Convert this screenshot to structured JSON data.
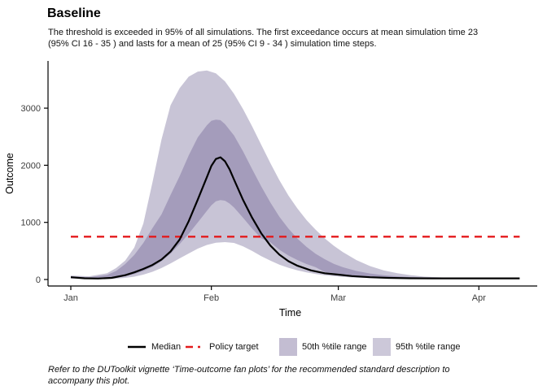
{
  "title": "Baseline",
  "subtitle_line1": "The threshold is exceeded in 95% of all simulations. The first exceedance occurs at mean simulation time 23",
  "subtitle_line2": "(95% CI 16 - 35 ) and lasts for a mean of 25 (95% CI 9 - 34 ) simulation time steps.",
  "footer_line1": "Refer to the DUToolkit vignette ‘Time-outcome fan plots’ for the recommended standard description to",
  "footer_line2": "accompany this plot.",
  "colors": {
    "background": "#ffffff",
    "axis": "#000000",
    "tick_text": "#3d3d3d",
    "median": "#000000",
    "policy_target": "#e41a1c",
    "band_95_fill": "#c8c4d6",
    "band_50_fill": "#a49cbb",
    "legend_key_50": "#c3bdd2",
    "legend_key_95": "#ccc8d9"
  },
  "chart_data": {
    "type": "area",
    "title": "Baseline",
    "xlabel": "Time",
    "ylabel": "Outcome",
    "x_ticks": [
      {
        "label": "Jan",
        "day": 0
      },
      {
        "label": "Feb",
        "day": 31
      },
      {
        "label": "Mar",
        "day": 59
      },
      {
        "label": "Apr",
        "day": 90
      }
    ],
    "y_ticks": [
      0,
      1000,
      2000,
      3000
    ],
    "ylim": [
      0,
      3700
    ],
    "xlim_days": [
      0,
      101
    ],
    "grid": "off",
    "legend_position": "bottom",
    "policy_target": {
      "name": "Policy target",
      "value": 750,
      "style": "dashed",
      "color": "#e41a1c"
    },
    "median": {
      "name": "Median",
      "color": "#000000",
      "points": [
        [
          0,
          40
        ],
        [
          3,
          22
        ],
        [
          6,
          17
        ],
        [
          9,
          28
        ],
        [
          12,
          75
        ],
        [
          14,
          125
        ],
        [
          16,
          185
        ],
        [
          18,
          255
        ],
        [
          20,
          350
        ],
        [
          22,
          490
        ],
        [
          24,
          700
        ],
        [
          26,
          1020
        ],
        [
          28,
          1400
        ],
        [
          30,
          1790
        ],
        [
          31,
          1990
        ],
        [
          32,
          2110
        ],
        [
          33,
          2140
        ],
        [
          34,
          2070
        ],
        [
          35,
          1930
        ],
        [
          36,
          1750
        ],
        [
          38,
          1390
        ],
        [
          40,
          1080
        ],
        [
          42,
          810
        ],
        [
          44,
          595
        ],
        [
          46,
          435
        ],
        [
          48,
          320
        ],
        [
          50,
          240
        ],
        [
          53,
          160
        ],
        [
          56,
          110
        ],
        [
          59,
          85
        ],
        [
          62,
          60
        ],
        [
          66,
          40
        ],
        [
          70,
          28
        ],
        [
          75,
          22
        ],
        [
          80,
          20
        ],
        [
          85,
          20
        ],
        [
          90,
          20
        ],
        [
          95,
          20
        ],
        [
          99,
          20
        ]
      ]
    },
    "bands": [
      {
        "name": "95th %tile range",
        "fill": "#c8c4d6",
        "key_fill": "#ccc8d9",
        "upper": [
          [
            0,
            70
          ],
          [
            4,
            55
          ],
          [
            8,
            110
          ],
          [
            10,
            200
          ],
          [
            12,
            330
          ],
          [
            14,
            560
          ],
          [
            16,
            980
          ],
          [
            18,
            1700
          ],
          [
            20,
            2450
          ],
          [
            22,
            3050
          ],
          [
            24,
            3350
          ],
          [
            26,
            3550
          ],
          [
            28,
            3640
          ],
          [
            30,
            3660
          ],
          [
            32,
            3610
          ],
          [
            34,
            3470
          ],
          [
            36,
            3250
          ],
          [
            38,
            2980
          ],
          [
            40,
            2680
          ],
          [
            42,
            2360
          ],
          [
            44,
            2040
          ],
          [
            46,
            1740
          ],
          [
            48,
            1470
          ],
          [
            50,
            1240
          ],
          [
            52,
            1040
          ],
          [
            54,
            870
          ],
          [
            56,
            720
          ],
          [
            58,
            590
          ],
          [
            60,
            480
          ],
          [
            63,
            340
          ],
          [
            66,
            235
          ],
          [
            69,
            160
          ],
          [
            72,
            110
          ],
          [
            75,
            75
          ],
          [
            78,
            50
          ],
          [
            82,
            35
          ],
          [
            86,
            27
          ],
          [
            90,
            23
          ],
          [
            99,
            22
          ]
        ],
        "lower": [
          [
            0,
            15
          ],
          [
            4,
            8
          ],
          [
            8,
            10
          ],
          [
            10,
            16
          ],
          [
            12,
            28
          ],
          [
            14,
            50
          ],
          [
            16,
            85
          ],
          [
            18,
            135
          ],
          [
            20,
            200
          ],
          [
            22,
            280
          ],
          [
            24,
            370
          ],
          [
            26,
            455
          ],
          [
            28,
            540
          ],
          [
            30,
            605
          ],
          [
            32,
            645
          ],
          [
            34,
            655
          ],
          [
            36,
            640
          ],
          [
            38,
            580
          ],
          [
            40,
            500
          ],
          [
            42,
            410
          ],
          [
            44,
            330
          ],
          [
            46,
            260
          ],
          [
            48,
            205
          ],
          [
            50,
            160
          ],
          [
            52,
            125
          ],
          [
            54,
            97
          ],
          [
            56,
            75
          ],
          [
            58,
            58
          ],
          [
            60,
            45
          ],
          [
            63,
            32
          ],
          [
            66,
            24
          ],
          [
            69,
            19
          ],
          [
            72,
            16
          ],
          [
            76,
            15
          ],
          [
            80,
            15
          ],
          [
            85,
            15
          ],
          [
            90,
            15
          ],
          [
            99,
            15
          ]
        ]
      },
      {
        "name": "50th %tile range",
        "fill": "#a49cbb",
        "key_fill": "#c3bdd2",
        "upper": [
          [
            0,
            55
          ],
          [
            4,
            40
          ],
          [
            8,
            80
          ],
          [
            10,
            150
          ],
          [
            12,
            270
          ],
          [
            14,
            430
          ],
          [
            16,
            640
          ],
          [
            18,
            900
          ],
          [
            20,
            1140
          ],
          [
            22,
            1480
          ],
          [
            24,
            1810
          ],
          [
            26,
            2170
          ],
          [
            28,
            2490
          ],
          [
            30,
            2700
          ],
          [
            31,
            2780
          ],
          [
            32,
            2800
          ],
          [
            33,
            2790
          ],
          [
            34,
            2720
          ],
          [
            36,
            2520
          ],
          [
            38,
            2240
          ],
          [
            40,
            1930
          ],
          [
            42,
            1630
          ],
          [
            44,
            1350
          ],
          [
            46,
            1100
          ],
          [
            48,
            890
          ],
          [
            50,
            715
          ],
          [
            52,
            570
          ],
          [
            54,
            450
          ],
          [
            56,
            355
          ],
          [
            58,
            275
          ],
          [
            60,
            215
          ],
          [
            63,
            150
          ],
          [
            66,
            105
          ],
          [
            69,
            75
          ],
          [
            72,
            55
          ],
          [
            76,
            38
          ],
          [
            80,
            26
          ],
          [
            85,
            22
          ],
          [
            90,
            21
          ],
          [
            99,
            21
          ]
        ],
        "lower": [
          [
            0,
            25
          ],
          [
            4,
            14
          ],
          [
            8,
            18
          ],
          [
            10,
            30
          ],
          [
            12,
            55
          ],
          [
            14,
            95
          ],
          [
            16,
            150
          ],
          [
            18,
            220
          ],
          [
            20,
            320
          ],
          [
            22,
            450
          ],
          [
            24,
            620
          ],
          [
            26,
            800
          ],
          [
            28,
            1000
          ],
          [
            30,
            1200
          ],
          [
            31,
            1300
          ],
          [
            32,
            1370
          ],
          [
            33,
            1390
          ],
          [
            34,
            1380
          ],
          [
            35,
            1330
          ],
          [
            36,
            1260
          ],
          [
            38,
            1080
          ],
          [
            40,
            890
          ],
          [
            42,
            720
          ],
          [
            44,
            650
          ],
          [
            46,
            520
          ],
          [
            48,
            420
          ],
          [
            50,
            340
          ],
          [
            52,
            270
          ],
          [
            54,
            215
          ],
          [
            56,
            130
          ],
          [
            59,
            95
          ],
          [
            63,
            55
          ],
          [
            66,
            38
          ],
          [
            70,
            26
          ],
          [
            75,
            21
          ],
          [
            80,
            18
          ],
          [
            85,
            18
          ],
          [
            90,
            18
          ],
          [
            99,
            18
          ]
        ]
      }
    ]
  },
  "legend": {
    "median_label": "Median",
    "policy_label": "Policy target",
    "p50_label": "50th %tile range",
    "p95_label": "95th %tile range"
  }
}
